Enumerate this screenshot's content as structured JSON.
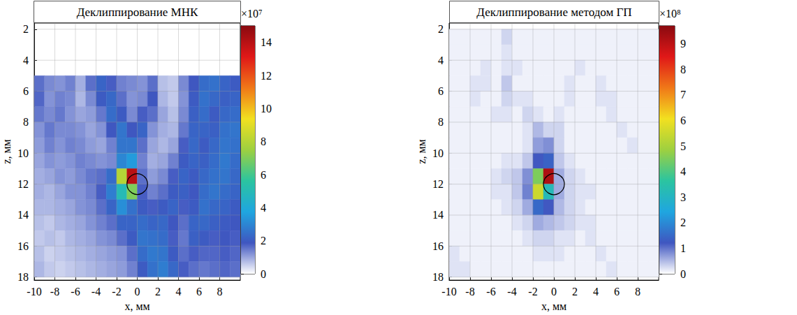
{
  "chart_data": [
    {
      "type": "heatmap",
      "title": "Деклиппирование МНК",
      "xlabel": "x, мм",
      "ylabel": "z, мм",
      "xlim": [
        -10,
        10
      ],
      "xticks": [
        -10,
        -8,
        -6,
        -4,
        -2,
        0,
        2,
        4,
        6,
        8
      ],
      "ylim": [
        1.6,
        18.2
      ],
      "yticks": [
        2,
        4,
        6,
        8,
        10,
        12,
        14,
        16,
        18
      ],
      "grid": true,
      "x": [
        -9.5,
        -8.5,
        -7.5,
        -6.5,
        -5.5,
        -4.5,
        -3.5,
        -2.5,
        -1.5,
        -0.5,
        0.5,
        1.5,
        2.5,
        3.5,
        4.5,
        5.5,
        6.5,
        7.5,
        8.5,
        9.5
      ],
      "z": [
        5.5,
        6.5,
        7.5,
        8.5,
        9.5,
        10.5,
        11.5,
        12.5,
        13.5,
        14.5,
        15.5,
        16.5,
        17.5
      ],
      "values": [
        [
          1.6,
          1.3,
          1.2,
          1.4,
          0.9,
          1.6,
          2.2,
          1.8,
          1.4,
          1.3,
          1.2,
          1.6,
          0.7,
          0.6,
          1.3,
          1.9,
          2.4,
          2.5,
          2.2,
          2.0
        ],
        [
          1.7,
          1.2,
          1.4,
          1.3,
          0.8,
          1.3,
          2.0,
          2.3,
          1.6,
          1.2,
          1.3,
          1.9,
          0.8,
          0.6,
          1.2,
          2.0,
          2.5,
          2.3,
          2.1,
          2.2
        ],
        [
          1.5,
          1.3,
          1.5,
          1.2,
          1.0,
          1.1,
          1.5,
          2.4,
          2.0,
          1.3,
          1.8,
          1.6,
          1.0,
          0.7,
          1.3,
          2.1,
          2.4,
          2.0,
          2.3,
          2.4
        ],
        [
          1.2,
          1.5,
          1.3,
          1.3,
          1.2,
          1.0,
          1.2,
          1.9,
          2.6,
          1.9,
          2.2,
          1.2,
          0.9,
          0.8,
          1.5,
          2.2,
          2.2,
          2.1,
          2.5,
          2.6
        ],
        [
          1.1,
          1.4,
          1.2,
          1.4,
          1.3,
          1.1,
          1.0,
          1.4,
          2.6,
          2.6,
          1.6,
          1.0,
          0.8,
          1.0,
          1.8,
          2.3,
          2.0,
          2.3,
          2.6,
          2.5
        ],
        [
          1.0,
          1.2,
          1.1,
          1.2,
          1.4,
          1.3,
          1.2,
          1.3,
          3.0,
          3.5,
          1.4,
          0.9,
          1.0,
          1.4,
          2.0,
          2.2,
          2.1,
          2.4,
          2.7,
          2.4
        ],
        [
          0.9,
          1.0,
          1.2,
          1.1,
          1.3,
          1.5,
          1.6,
          2.4,
          8.0,
          14.0,
          1.6,
          1.1,
          1.3,
          1.8,
          2.2,
          2.0,
          2.3,
          2.5,
          2.6,
          2.3
        ],
        [
          0.9,
          0.8,
          1.0,
          1.2,
          1.2,
          1.4,
          1.8,
          2.8,
          5.0,
          7.0,
          1.8,
          1.4,
          1.6,
          2.0,
          2.1,
          1.9,
          2.4,
          2.6,
          2.4,
          2.2
        ],
        [
          0.8,
          0.8,
          0.9,
          1.0,
          1.2,
          1.3,
          1.6,
          2.2,
          3.2,
          2.5,
          2.0,
          1.8,
          2.0,
          2.2,
          1.8,
          2.0,
          2.5,
          2.3,
          2.2,
          2.0
        ],
        [
          0.7,
          0.6,
          0.8,
          0.9,
          1.0,
          1.2,
          1.4,
          1.6,
          2.2,
          2.2,
          2.4,
          2.2,
          2.3,
          1.9,
          1.6,
          2.2,
          2.3,
          2.1,
          2.0,
          1.9
        ],
        [
          0.6,
          0.7,
          0.6,
          0.8,
          0.9,
          1.0,
          1.2,
          1.3,
          1.6,
          2.0,
          2.6,
          2.5,
          2.4,
          1.8,
          1.5,
          2.1,
          2.0,
          1.8,
          1.9,
          1.8
        ],
        [
          0.7,
          0.5,
          0.6,
          0.7,
          0.8,
          0.9,
          1.0,
          1.1,
          1.2,
          1.6,
          2.4,
          2.7,
          2.6,
          2.0,
          1.6,
          1.8,
          1.7,
          1.7,
          1.8,
          1.7
        ],
        [
          0.8,
          0.6,
          0.5,
          0.6,
          0.7,
          0.8,
          0.9,
          1.0,
          1.1,
          1.4,
          2.0,
          2.5,
          2.8,
          2.3,
          1.8,
          1.6,
          1.5,
          1.6,
          1.7,
          1.6
        ]
      ],
      "colorbar": {
        "lim": [
          0,
          15
        ],
        "ticks": [
          0,
          2,
          4,
          6,
          8,
          10,
          12,
          14
        ],
        "label": "×10⁷"
      },
      "defect": {
        "x": 0,
        "z": 12,
        "r": 1
      }
    },
    {
      "type": "heatmap",
      "title": "Деклиппирование методом ГП",
      "xlabel": "x, мм",
      "ylabel": "z, мм",
      "xlim": [
        -10,
        10
      ],
      "xticks": [
        -10,
        -8,
        -6,
        -4,
        -2,
        0,
        2,
        4,
        6,
        8
      ],
      "ylim": [
        1.6,
        18.2
      ],
      "yticks": [
        2,
        4,
        6,
        8,
        10,
        12,
        14,
        16,
        18
      ],
      "grid": true,
      "x": [
        -9.5,
        -8.5,
        -7.5,
        -6.5,
        -5.5,
        -4.5,
        -3.5,
        -2.5,
        -1.5,
        -0.5,
        0.5,
        1.5,
        2.5,
        3.5,
        4.5,
        5.5,
        6.5,
        7.5,
        8.5,
        9.5
      ],
      "z": [
        2.5,
        3.5,
        4.5,
        5.5,
        6.5,
        7.5,
        8.5,
        9.5,
        10.5,
        11.5,
        12.5,
        13.5,
        14.5,
        15.5,
        16.5,
        17.5
      ],
      "values": [
        [
          0.1,
          0.1,
          0.1,
          0.1,
          0.1,
          0.3,
          0.1,
          0.1,
          0.1,
          0.1,
          0.1,
          0.1,
          0.1,
          0.1,
          0.1,
          0.1,
          0.1,
          0.1,
          0.1,
          0.1
        ],
        [
          0.1,
          0.1,
          0.1,
          0.1,
          0.1,
          0.2,
          0.1,
          0.1,
          0.1,
          0.1,
          0.1,
          0.1,
          0.1,
          0.1,
          0.1,
          0.1,
          0.1,
          0.1,
          0.1,
          0.1
        ],
        [
          0.1,
          0.1,
          0.1,
          0.2,
          0.1,
          0.2,
          0.2,
          0.1,
          0.1,
          0.1,
          0.1,
          0.1,
          0.2,
          0.1,
          0.1,
          0.1,
          0.1,
          0.1,
          0.1,
          0.1
        ],
        [
          0.1,
          0.1,
          0.2,
          0.2,
          0.1,
          0.4,
          0.1,
          0.1,
          0.1,
          0.1,
          0.1,
          0.2,
          0.1,
          0.1,
          0.2,
          0.1,
          0.1,
          0.1,
          0.1,
          0.1
        ],
        [
          0.1,
          0.1,
          0.2,
          0.1,
          0.1,
          0.3,
          0.2,
          0.2,
          0.1,
          0.1,
          0.1,
          0.2,
          0.1,
          0.1,
          0.2,
          0.2,
          0.1,
          0.1,
          0.1,
          0.1
        ],
        [
          0.1,
          0.1,
          0.1,
          0.1,
          0.2,
          0.2,
          0.1,
          0.3,
          0.2,
          0.1,
          0.2,
          0.1,
          0.1,
          0.1,
          0.1,
          0.2,
          0.1,
          0.1,
          0.1,
          0.1
        ],
        [
          0.1,
          0.1,
          0.1,
          0.1,
          0.1,
          0.1,
          0.1,
          0.2,
          0.5,
          0.3,
          0.3,
          0.1,
          0.1,
          0.1,
          0.1,
          0.1,
          0.2,
          0.1,
          0.1,
          0.1
        ],
        [
          0.1,
          0.1,
          0.1,
          0.1,
          0.1,
          0.1,
          0.1,
          0.2,
          0.7,
          0.8,
          0.3,
          0.1,
          0.1,
          0.1,
          0.1,
          0.1,
          0.1,
          0.2,
          0.1,
          0.1
        ],
        [
          0.1,
          0.1,
          0.1,
          0.1,
          0.1,
          0.2,
          0.2,
          0.4,
          1.2,
          1.4,
          0.4,
          0.2,
          0.1,
          0.1,
          0.1,
          0.1,
          0.1,
          0.1,
          0.1,
          0.1
        ],
        [
          0.1,
          0.1,
          0.1,
          0.1,
          0.2,
          0.3,
          0.4,
          0.8,
          4.5,
          9.2,
          0.6,
          0.3,
          0.2,
          0.1,
          0.1,
          0.1,
          0.1,
          0.1,
          0.1,
          0.1
        ],
        [
          0.1,
          0.1,
          0.1,
          0.1,
          0.2,
          0.2,
          0.4,
          0.9,
          5.5,
          3.2,
          0.6,
          0.3,
          0.2,
          0.2,
          0.1,
          0.1,
          0.1,
          0.1,
          0.1,
          0.1
        ],
        [
          0.1,
          0.1,
          0.1,
          0.1,
          0.1,
          0.2,
          0.3,
          0.6,
          1.5,
          1.2,
          0.5,
          0.3,
          0.2,
          0.1,
          0.1,
          0.1,
          0.1,
          0.1,
          0.1,
          0.1
        ],
        [
          0.1,
          0.1,
          0.1,
          0.1,
          0.1,
          0.1,
          0.2,
          0.3,
          0.6,
          0.5,
          0.4,
          0.3,
          0.2,
          0.2,
          0.1,
          0.1,
          0.1,
          0.1,
          0.1,
          0.1
        ],
        [
          0.1,
          0.1,
          0.1,
          0.1,
          0.1,
          0.1,
          0.1,
          0.2,
          0.3,
          0.3,
          0.2,
          0.2,
          0.1,
          0.2,
          0.1,
          0.1,
          0.1,
          0.1,
          0.1,
          0.1
        ],
        [
          0.2,
          0.1,
          0.1,
          0.1,
          0.1,
          0.1,
          0.1,
          0.1,
          0.2,
          0.2,
          0.2,
          0.1,
          0.1,
          0.1,
          0.2,
          0.1,
          0.1,
          0.1,
          0.1,
          0.1
        ],
        [
          0.2,
          0.2,
          0.1,
          0.1,
          0.1,
          0.1,
          0.1,
          0.1,
          0.1,
          0.1,
          0.1,
          0.1,
          0.1,
          0.1,
          0.1,
          0.2,
          0.1,
          0.1,
          0.1,
          0.1
        ]
      ],
      "colorbar": {
        "lim": [
          0,
          9.7
        ],
        "ticks": [
          0,
          1,
          2,
          3,
          4,
          5,
          6,
          7,
          8,
          9
        ],
        "label": "×10⁸"
      },
      "defect": {
        "x": 0,
        "z": 12,
        "r": 1
      }
    }
  ]
}
